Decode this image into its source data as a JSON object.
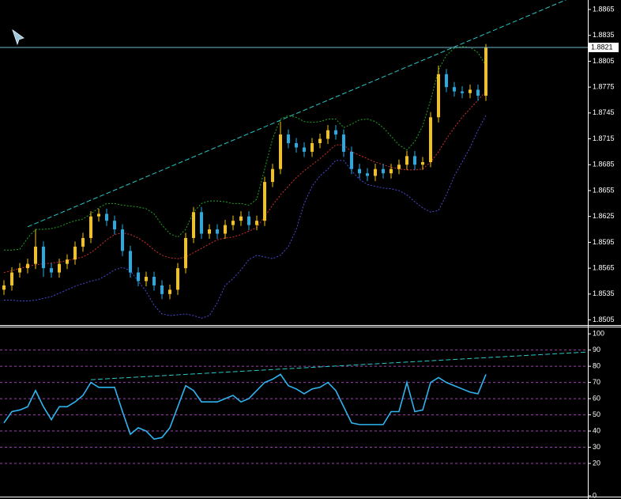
{
  "chart_data": [
    {
      "type": "candlestick",
      "categories": [
        null,
        null,
        null,
        null,
        null,
        null,
        null,
        null,
        null,
        null,
        null,
        null,
        null,
        null,
        null,
        null,
        null,
        null,
        null,
        null,
        null,
        null,
        null,
        null,
        null,
        null,
        null,
        null,
        null,
        null,
        null,
        null,
        null,
        null,
        null,
        null,
        null,
        null,
        null,
        null,
        null,
        null,
        null,
        null,
        null,
        null,
        null,
        null,
        null,
        null,
        null,
        null,
        null,
        null,
        null,
        null,
        null,
        null,
        null,
        null,
        null,
        null
      ],
      "open": [
        1.854,
        1.8545,
        1.856,
        1.8565,
        1.857,
        1.859,
        1.8565,
        1.856,
        1.857,
        1.8575,
        1.859,
        1.86,
        1.8625,
        1.8628,
        1.862,
        1.861,
        1.8585,
        1.856,
        1.855,
        1.8555,
        1.8545,
        1.8535,
        1.854,
        1.8565,
        1.86,
        1.863,
        1.8605,
        1.861,
        1.8605,
        1.8615,
        1.862,
        1.8625,
        1.8615,
        1.862,
        1.8665,
        1.868,
        1.872,
        1.871,
        1.8705,
        1.87,
        1.871,
        1.8715,
        1.8725,
        1.872,
        1.87,
        1.868,
        1.8675,
        1.8672,
        1.868,
        1.8675,
        1.868,
        1.8685,
        1.8695,
        1.8685,
        1.8688,
        1.874,
        1.879,
        1.8775,
        1.877,
        1.8768,
        1.8772,
        1.8765
      ],
      "high": [
        1.8551,
        1.8566,
        1.8571,
        1.8576,
        1.861,
        1.8596,
        1.8571,
        1.8576,
        1.8581,
        1.8596,
        1.8606,
        1.8631,
        1.8634,
        1.8634,
        1.8626,
        1.8616,
        1.8591,
        1.8566,
        1.8561,
        1.8561,
        1.8551,
        1.8546,
        1.8571,
        1.8606,
        1.8636,
        1.8636,
        1.8616,
        1.8616,
        1.8621,
        1.8626,
        1.8631,
        1.8631,
        1.8626,
        1.8671,
        1.8686,
        1.8735,
        1.8726,
        1.8716,
        1.8711,
        1.8716,
        1.8721,
        1.8731,
        1.8731,
        1.8726,
        1.8706,
        1.8686,
        1.8681,
        1.8686,
        1.8686,
        1.8686,
        1.8691,
        1.8701,
        1.8701,
        1.8694,
        1.8746,
        1.88,
        1.8796,
        1.8781,
        1.8776,
        1.8778,
        1.8778,
        1.8825
      ],
      "low": [
        1.8534,
        1.8539,
        1.8554,
        1.8559,
        1.8564,
        1.8555,
        1.8554,
        1.8554,
        1.8564,
        1.8569,
        1.8584,
        1.8594,
        1.8619,
        1.8614,
        1.8604,
        1.8579,
        1.8554,
        1.8544,
        1.8544,
        1.8539,
        1.8529,
        1.8529,
        1.8534,
        1.8559,
        1.8594,
        1.8599,
        1.8599,
        1.8599,
        1.8599,
        1.8609,
        1.8614,
        1.8609,
        1.8609,
        1.8614,
        1.8659,
        1.8674,
        1.8704,
        1.8699,
        1.8694,
        1.8694,
        1.8704,
        1.8709,
        1.8714,
        1.8694,
        1.8674,
        1.8669,
        1.8666,
        1.8666,
        1.8669,
        1.8669,
        1.8674,
        1.8679,
        1.8679,
        1.8679,
        1.8682,
        1.8734,
        1.8769,
        1.8764,
        1.8762,
        1.8762,
        1.8759,
        1.8759
      ],
      "close": [
        1.8545,
        1.856,
        1.8565,
        1.857,
        1.859,
        1.8565,
        1.856,
        1.857,
        1.8575,
        1.859,
        1.86,
        1.8625,
        1.8628,
        1.862,
        1.861,
        1.8585,
        1.856,
        1.855,
        1.8555,
        1.8545,
        1.8535,
        1.854,
        1.8565,
        1.86,
        1.863,
        1.8605,
        1.861,
        1.8605,
        1.8615,
        1.862,
        1.8625,
        1.8615,
        1.862,
        1.8665,
        1.868,
        1.872,
        1.871,
        1.8705,
        1.87,
        1.871,
        1.8715,
        1.8725,
        1.872,
        1.87,
        1.868,
        1.8675,
        1.8672,
        1.868,
        1.8675,
        1.868,
        1.8685,
        1.8695,
        1.8685,
        1.8688,
        1.874,
        1.879,
        1.8775,
        1.877,
        1.8768,
        1.8772,
        1.8765,
        1.8821
      ],
      "up_color": "#f2c21b",
      "down_color": "#29abe2",
      "series": [
        {
          "color": "#21a321",
          "values": [
            1.8586,
            1.8586,
            1.8587,
            1.86,
            1.861,
            1.861,
            1.8611,
            1.8613,
            1.8617,
            1.862,
            1.8622,
            1.8628,
            1.8635,
            1.864,
            1.864,
            1.8638,
            1.8637,
            1.8636,
            1.8634,
            1.8628,
            1.8615,
            1.8605,
            1.8601,
            1.861,
            1.863,
            1.864,
            1.8643,
            1.8643,
            1.8642,
            1.864,
            1.864,
            1.8638,
            1.8645,
            1.868,
            1.8715,
            1.8738,
            1.8742,
            1.874,
            1.8735,
            1.8734,
            1.8735,
            1.8738,
            1.8738,
            1.8728,
            1.8732,
            1.8737,
            1.8738,
            1.8735,
            1.8728,
            1.8718,
            1.8708,
            1.8702,
            1.8712,
            1.873,
            1.876,
            1.8795,
            1.8812,
            1.882,
            1.8822,
            1.8821,
            1.8815,
            1.88
          ]
        },
        {
          "color": "#d32f2f",
          "values": [
            1.856,
            1.8562,
            1.8565,
            1.8567,
            1.8569,
            1.857,
            1.8571,
            1.8572,
            1.8574,
            1.8576,
            1.8578,
            1.8583,
            1.859,
            1.8598,
            1.8604,
            1.8606,
            1.8604,
            1.86,
            1.8594,
            1.8586,
            1.858,
            1.8577,
            1.8576,
            1.8578,
            1.8583,
            1.8588,
            1.8593,
            1.8598,
            1.86,
            1.8601,
            1.8604,
            1.8608,
            1.8612,
            1.8625,
            1.8638,
            1.865,
            1.866,
            1.867,
            1.8678,
            1.8685,
            1.8692,
            1.87,
            1.8708,
            1.8708,
            1.87,
            1.8696,
            1.8692,
            1.8688,
            1.8685,
            1.8682,
            1.868,
            1.8679,
            1.8679,
            1.868,
            1.8688,
            1.87,
            1.8715,
            1.8728,
            1.874,
            1.875,
            1.876,
            1.877
          ]
        },
        {
          "color": "#4a4ad6",
          "values": [
            1.8528,
            1.8528,
            1.8527,
            1.8527,
            1.8528,
            1.853,
            1.8532,
            1.8536,
            1.854,
            1.8544,
            1.8547,
            1.855,
            1.8552,
            1.8557,
            1.8563,
            1.8566,
            1.8562,
            1.855,
            1.8538,
            1.8522,
            1.8512,
            1.851,
            1.8511,
            1.8512,
            1.851,
            1.8507,
            1.851,
            1.8525,
            1.8545,
            1.8553,
            1.8563,
            1.8575,
            1.858,
            1.8578,
            1.8576,
            1.858,
            1.859,
            1.861,
            1.864,
            1.866,
            1.8672,
            1.868,
            1.869,
            1.869,
            1.8678,
            1.8668,
            1.8662,
            1.866,
            1.8658,
            1.8657,
            1.8655,
            1.865,
            1.8642,
            1.8635,
            1.863,
            1.8632,
            1.865,
            1.8672,
            1.8688,
            1.8705,
            1.8725,
            1.8742
          ]
        }
      ],
      "ylim": [
        1.85,
        1.8876
      ],
      "yticks": [
        1.8505,
        1.8535,
        1.8565,
        1.8595,
        1.8625,
        1.8655,
        1.8685,
        1.8715,
        1.8745,
        1.8775,
        1.8805,
        1.8835,
        1.8865
      ],
      "current_price": 1.8821,
      "trendline": {
        "from": [
          3,
          1.8613
        ],
        "to": [
          61,
          1.8837
        ]
      }
    },
    {
      "type": "line",
      "color": "#2fb4f0",
      "values": [
        45,
        52,
        53,
        55,
        65,
        55,
        47,
        55,
        55,
        58,
        62,
        70,
        67,
        67,
        67,
        52,
        38,
        42,
        40,
        35,
        36,
        42,
        55,
        68,
        65,
        58,
        58,
        58,
        60,
        62,
        58,
        60,
        65,
        70,
        72,
        75,
        68,
        66,
        63,
        66,
        67,
        70,
        65,
        55,
        45,
        44,
        44,
        44,
        44,
        52,
        52,
        70,
        52,
        53,
        70,
        73,
        70,
        68,
        66,
        64,
        63,
        75
      ],
      "ylim": [
        -0.5,
        104
      ],
      "yticks": [
        0,
        20,
        30,
        40,
        50,
        60,
        70,
        80,
        90,
        100
      ],
      "grid": true,
      "trendline": {
        "from": [
          11,
          71.7
        ],
        "to": [
          61,
          85.3
        ]
      }
    }
  ]
}
